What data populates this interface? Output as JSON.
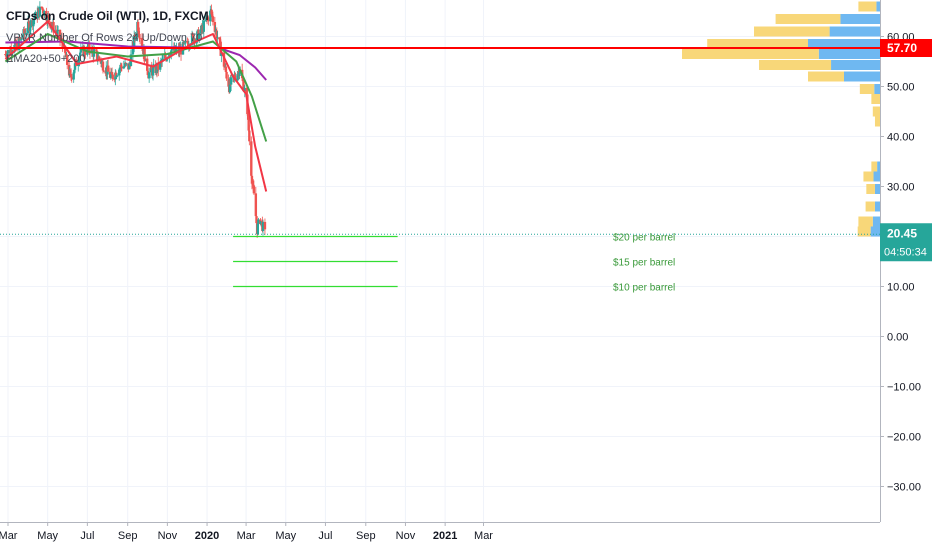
{
  "header": {
    "title": "CFDs on Crude Oil (WTI), 1D, FXCM",
    "indicator_vpvr": "VPVR Number Of Rows 24 Up/Down 70",
    "indicator_ema": "EMA20+50+200"
  },
  "colors": {
    "background": "#ffffff",
    "grid": "#f0f3fa",
    "candle_up": "#26a69a",
    "candle_down": "#ef5350",
    "ema20": "#f23645",
    "ema50": "#43a047",
    "ema200": "#9c27b0",
    "resistance_line": "#ff0000",
    "target_lines": "#33dd33",
    "vpvr_up": "#5fb0ef",
    "vpvr_down": "#f7d36a",
    "current_price": "#26a69a"
  },
  "chart_data": {
    "type": "candlestick",
    "symbol": "CFDs on Crude Oil (WTI)",
    "timeframe": "1D",
    "x_axis_labels": [
      "Mar",
      "May",
      "Jul",
      "Sep",
      "Nov",
      "2020",
      "Mar",
      "May",
      "Jul",
      "Sep",
      "Nov",
      "2021",
      "Mar"
    ],
    "y_ticks": [
      60,
      50,
      40,
      30,
      20,
      10,
      0,
      -10,
      -20,
      -30
    ],
    "y_tick_labels": [
      "60.00",
      "50.00",
      "40.00",
      "30.00",
      "20.00",
      "10.00",
      "0.00",
      "−10.00",
      "−20.00",
      "−30.00"
    ],
    "ylim": [
      -36,
      66
    ],
    "price_close_series": [
      {
        "date": "2019-02-25",
        "close": 56.5
      },
      {
        "date": "2019-03-15",
        "close": 58.3
      },
      {
        "date": "2019-04-05",
        "close": 62.7
      },
      {
        "date": "2019-04-22",
        "close": 65.7
      },
      {
        "date": "2019-05-10",
        "close": 61.7
      },
      {
        "date": "2019-05-24",
        "close": 58.6
      },
      {
        "date": "2019-06-05",
        "close": 51.7
      },
      {
        "date": "2019-06-20",
        "close": 56.8
      },
      {
        "date": "2019-07-05",
        "close": 57.5
      },
      {
        "date": "2019-07-19",
        "close": 55.6
      },
      {
        "date": "2019-08-07",
        "close": 51.8
      },
      {
        "date": "2019-08-23",
        "close": 54.2
      },
      {
        "date": "2019-09-03",
        "close": 53.9
      },
      {
        "date": "2019-09-16",
        "close": 62.7
      },
      {
        "date": "2019-10-03",
        "close": 52.6
      },
      {
        "date": "2019-10-18",
        "close": 53.8
      },
      {
        "date": "2019-11-05",
        "close": 57.2
      },
      {
        "date": "2019-11-20",
        "close": 57.1
      },
      {
        "date": "2019-12-06",
        "close": 59.2
      },
      {
        "date": "2019-12-20",
        "close": 60.4
      },
      {
        "date": "2020-01-07",
        "close": 64.9
      },
      {
        "date": "2020-01-20",
        "close": 58.4
      },
      {
        "date": "2020-02-04",
        "close": 50.0
      },
      {
        "date": "2020-02-20",
        "close": 53.5
      },
      {
        "date": "2020-03-02",
        "close": 47.5
      },
      {
        "date": "2020-03-09",
        "close": 33.0
      },
      {
        "date": "2020-03-18",
        "close": 21.5
      },
      {
        "date": "2020-03-23",
        "close": 23.5
      },
      {
        "date": "2020-03-30",
        "close": 20.45
      }
    ],
    "ema20": [
      {
        "date": "2019-02-25",
        "value": 55.5
      },
      {
        "date": "2019-05-01",
        "value": 63.0
      },
      {
        "date": "2019-06-15",
        "value": 54.5
      },
      {
        "date": "2019-08-15",
        "value": 56.0
      },
      {
        "date": "2019-10-10",
        "value": 54.0
      },
      {
        "date": "2019-12-15",
        "value": 59.0
      },
      {
        "date": "2020-01-10",
        "value": 60.5
      },
      {
        "date": "2020-02-10",
        "value": 52.0
      },
      {
        "date": "2020-03-01",
        "value": 48.5
      },
      {
        "date": "2020-03-15",
        "value": 38.0
      },
      {
        "date": "2020-04-01",
        "value": 29.0
      }
    ],
    "ema50": [
      {
        "date": "2019-02-25",
        "value": 55.0
      },
      {
        "date": "2019-05-01",
        "value": 60.5
      },
      {
        "date": "2019-07-01",
        "value": 57.0
      },
      {
        "date": "2019-09-01",
        "value": 56.0
      },
      {
        "date": "2019-11-01",
        "value": 56.5
      },
      {
        "date": "2020-01-10",
        "value": 59.0
      },
      {
        "date": "2020-02-15",
        "value": 55.0
      },
      {
        "date": "2020-03-10",
        "value": 48.0
      },
      {
        "date": "2020-04-01",
        "value": 39.0
      }
    ],
    "ema200": [
      {
        "date": "2019-02-25",
        "value": 58.8
      },
      {
        "date": "2019-06-01",
        "value": 59.0
      },
      {
        "date": "2019-09-01",
        "value": 58.0
      },
      {
        "date": "2019-12-01",
        "value": 57.8
      },
      {
        "date": "2020-01-20",
        "value": 57.7
      },
      {
        "date": "2020-02-20",
        "value": 56.3
      },
      {
        "date": "2020-03-15",
        "value": 53.8
      },
      {
        "date": "2020-04-01",
        "value": 51.3
      }
    ],
    "horizontal_levels": [
      {
        "value": 57.7,
        "label": "57.70",
        "style": "solid"
      },
      {
        "value": 20.45,
        "label": "20.45",
        "style": "dotted"
      }
    ],
    "target_lines": [
      {
        "value": 20,
        "label": "$20 per barrel",
        "start": "2020-02-10",
        "end": "2020-10-20"
      },
      {
        "value": 15,
        "label": "$15 per barrel",
        "start": "2020-02-10",
        "end": "2020-10-20"
      },
      {
        "value": 10,
        "label": "$10 per barrel",
        "start": "2020-02-10",
        "end": "2020-10-20"
      }
    ],
    "price_labels": {
      "resistance": "57.70",
      "current": "20.45",
      "countdown": "04:50:34"
    },
    "vpvr": [
      {
        "price": 66.0,
        "up": 0.5,
        "down": 2.5
      },
      {
        "price": 63.5,
        "up": 5.5,
        "down": 9.0
      },
      {
        "price": 61.0,
        "up": 7.0,
        "down": 10.5
      },
      {
        "price": 58.5,
        "up": 10.0,
        "down": 14.0
      },
      {
        "price": 56.5,
        "up": 8.5,
        "down": 19.0
      },
      {
        "price": 54.3,
        "up": 6.8,
        "down": 10.0
      },
      {
        "price": 52.0,
        "up": 5.0,
        "down": 5.0
      },
      {
        "price": 49.5,
        "up": 0.8,
        "down": 2.0
      },
      {
        "price": 47.5,
        "up": 0.0,
        "down": 1.2
      },
      {
        "price": 45.0,
        "up": 0.0,
        "down": 1.0
      },
      {
        "price": 43.0,
        "up": 0.0,
        "down": 0.7
      },
      {
        "price": 34.0,
        "up": 0.4,
        "down": 0.8
      },
      {
        "price": 32.0,
        "up": 0.9,
        "down": 1.4
      },
      {
        "price": 29.5,
        "up": 0.7,
        "down": 1.2
      },
      {
        "price": 26.0,
        "up": 0.7,
        "down": 1.3
      },
      {
        "price": 23.0,
        "up": 1.0,
        "down": 2.0
      },
      {
        "price": 21.0,
        "up": 1.3,
        "down": 1.8
      }
    ]
  }
}
